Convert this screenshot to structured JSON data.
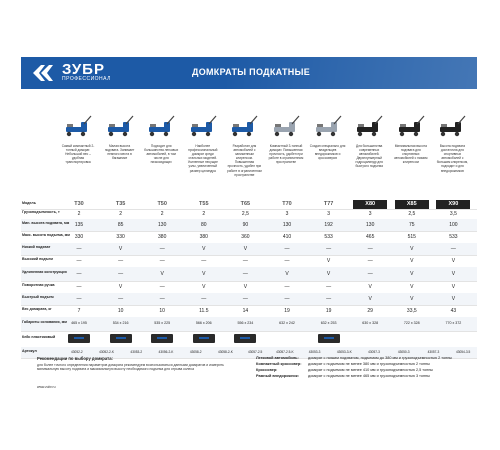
{
  "banner": {
    "brand": "ЗУБР",
    "brand_sub": "ПРОФЕССИОНАЛ",
    "title": "ДОМКРАТЫ ПОДКАТНЫЕ",
    "color": "#1d5aa6"
  },
  "products": [
    {
      "desc": "Самый компактный 2-тонный домкрат. Небольшой вес – удобная транспортировка",
      "color": "#1d5aa6"
    },
    {
      "desc": "Малая высота подхвата. Занимает немного места в багажнике",
      "color": "#1d5aa6"
    },
    {
      "desc": "Подходит для большинства легковых автомобилей, в том числе для низкосидящих",
      "color": "#1d5aa6"
    },
    {
      "desc": "Наиболее профессиональный домкрат среди стальных моделей. Усиленные несущие узлы, увеличенный размер цилиндра",
      "color": "#1d5aa6"
    },
    {
      "desc": "Разработан для автомобилей с заниженным клиренсом. Повышенная прочность, удобен при работе в ограниченном пространстве",
      "color": "#1d5aa6"
    },
    {
      "desc": "Компактный 3-тонный домкрат. Повышенная прочность, удобен при работе в ограниченном пространстве",
      "color": "#9aa4b0"
    },
    {
      "desc": "Создан специально для владельцев внедорожников и кроссоверов",
      "color": "#9aa4b0"
    },
    {
      "desc": "Для большинства современных автомобилей. Двухплунжерный гидроцилиндр для быстрого подъема",
      "color": "#222222"
    },
    {
      "desc": "Минимальная высота подхвата для спортивных автомобилей с низким клиренсом",
      "color": "#222222"
    },
    {
      "desc": "Высота подхвата достаточна для спортивных автомобилей с большим клиренсом, подходит и для внедорожников",
      "color": "#222222"
    }
  ],
  "table": {
    "model_label": "Модель",
    "models": [
      "T30",
      "T35",
      "T50",
      "T55",
      "T65",
      "T70",
      "T77",
      "X80",
      "X85",
      "X90"
    ],
    "rows": [
      {
        "label": "Грузоподъемность, т",
        "values": [
          "2",
          "2",
          "2",
          "2",
          "2,5",
          "3",
          "3",
          "3",
          "2,5",
          "3,5"
        ]
      },
      {
        "label": "Мин. высота подхвата, мм",
        "values": [
          "135",
          "85",
          "130",
          "80",
          "90",
          "130",
          "192",
          "130",
          "75",
          "100"
        ]
      },
      {
        "label": "Макс. высота подъема, мм",
        "values": [
          "330",
          "330",
          "380",
          "380",
          "360",
          "410",
          "533",
          "465",
          "515",
          "533"
        ]
      },
      {
        "label": "Низкий подхват",
        "values": [
          "—",
          "V",
          "—",
          "V",
          "V",
          "—",
          "—",
          "—",
          "V",
          "—"
        ]
      },
      {
        "label": "Высокий подъем",
        "values": [
          "—",
          "—",
          "—",
          "—",
          "—",
          "—",
          "V",
          "—",
          "V",
          "V"
        ]
      },
      {
        "label": "Удлиненная конструкция",
        "values": [
          "—",
          "—",
          "V",
          "V",
          "—",
          "V",
          "V",
          "—",
          "V",
          "V"
        ]
      },
      {
        "label": "Поворотная ручка",
        "values": [
          "—",
          "V",
          "—",
          "V",
          "V",
          "—",
          "—",
          "V",
          "V",
          "V"
        ]
      },
      {
        "label": "Быстрый подъем",
        "values": [
          "—",
          "—",
          "—",
          "—",
          "—",
          "—",
          "—",
          "V",
          "V",
          "V"
        ]
      },
      {
        "label": "Вес домкрата, кг",
        "values": [
          "7",
          "10",
          "10",
          "11.5",
          "14",
          "19",
          "19",
          "29",
          "33,5",
          "43"
        ]
      },
      {
        "label": "Габариты основания, мм",
        "values": [
          "465 х 195",
          "534 х 216",
          "535 х 225",
          "566 х 206",
          "556 х 234",
          "632 х 242",
          "632 х 253",
          "630 х 328",
          "722 х 328",
          "770 х 372"
        ]
      }
    ],
    "case_label": "Кейс пластиковый",
    "cases": [
      true,
      true,
      true,
      true,
      true,
      false,
      true,
      false,
      false,
      false
    ],
    "article_label": "Артикул",
    "articles": [
      "43052-2",
      "43052-2-K",
      "43053-2",
      "43056-2-K",
      "43058-2",
      "43058-2-K",
      "43057-2.5",
      "43057-2.5-K",
      "43053-3",
      "43053-3-K",
      "43057-3",
      "43050-3",
      "43057-3",
      "43054-3.5"
    ]
  },
  "recommendation": {
    "title": "Рекомендации по выбору домкрата:",
    "body": "для более точного определения параметров домкрата рекомендуем воспользоваться данными домкратов и измерить минимальную высоту подхвата и максимальную высоту необходимого подъема для отрыва колеса",
    "site": "www.zubr.ru"
  },
  "categories": [
    {
      "name": "Легковой автомобиль:",
      "text": "домкрат с низким подхватом, подъемом до 380 мм и грузоподъемностью 2 тонны"
    },
    {
      "name": "Компактный кроссовер:",
      "text": "домкрат с подъемом не менее 380 мм и грузоподъемностью 2 тонны"
    },
    {
      "name": "Кроссовер:",
      "text": "домкрат с подъемом не менее 410 мм и грузоподъемностью 2,5 тонны"
    },
    {
      "name": "Рамный внедорожник:",
      "text": "домкрат с подъемом не менее 465 мм и грузоподъемностью 3 тонны"
    }
  ]
}
